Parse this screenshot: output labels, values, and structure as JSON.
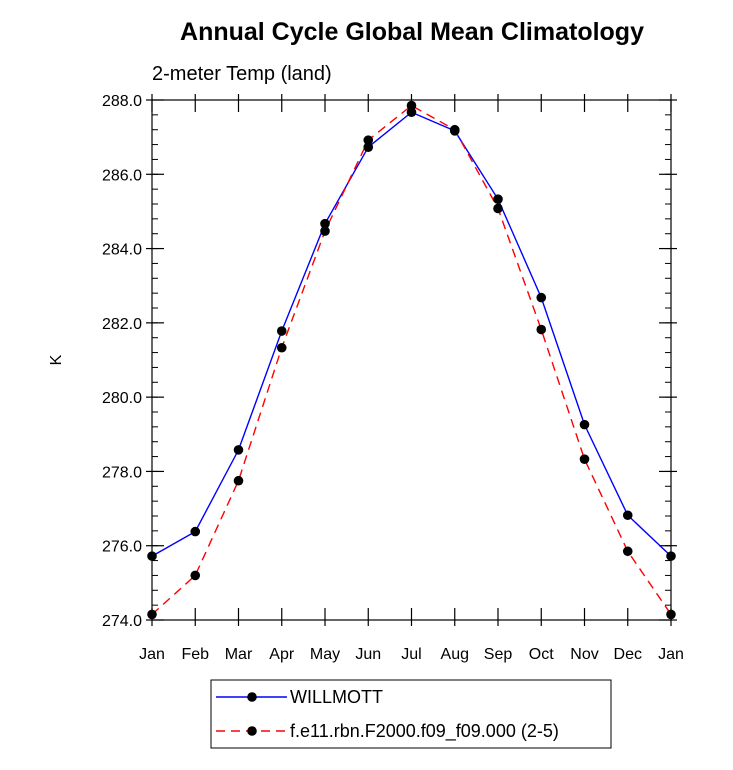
{
  "chart_data": {
    "type": "line",
    "title": "Annual Cycle Global Mean Climatology",
    "subtitle": "2-meter Temp (land)",
    "xlabel": "",
    "ylabel": "K",
    "categories": [
      "Jan",
      "Feb",
      "Mar",
      "Apr",
      "May",
      "Jun",
      "Jul",
      "Aug",
      "Sep",
      "Oct",
      "Nov",
      "Dec",
      "Jan"
    ],
    "ylim": [
      274.0,
      288.0
    ],
    "yticks": [
      "274.0",
      "276.0",
      "278.0",
      "280.0",
      "282.0",
      "284.0",
      "286.0",
      "288.0"
    ],
    "grid": false,
    "legend_position": "bottom",
    "series": [
      {
        "name": "WILLMOTT",
        "color": "#0000ff",
        "dash": "solid",
        "values": [
          275.72,
          276.38,
          278.58,
          281.78,
          284.67,
          286.73,
          287.67,
          287.17,
          285.33,
          282.68,
          279.26,
          276.82,
          275.72
        ]
      },
      {
        "name": "f.e11.rbn.F2000.f09_f09.000 (2-5)",
        "color": "#ff0000",
        "dash": "dashed",
        "values": [
          274.15,
          275.2,
          277.75,
          281.33,
          284.47,
          286.92,
          287.85,
          287.2,
          285.08,
          281.82,
          278.33,
          275.85,
          274.15
        ]
      }
    ]
  }
}
